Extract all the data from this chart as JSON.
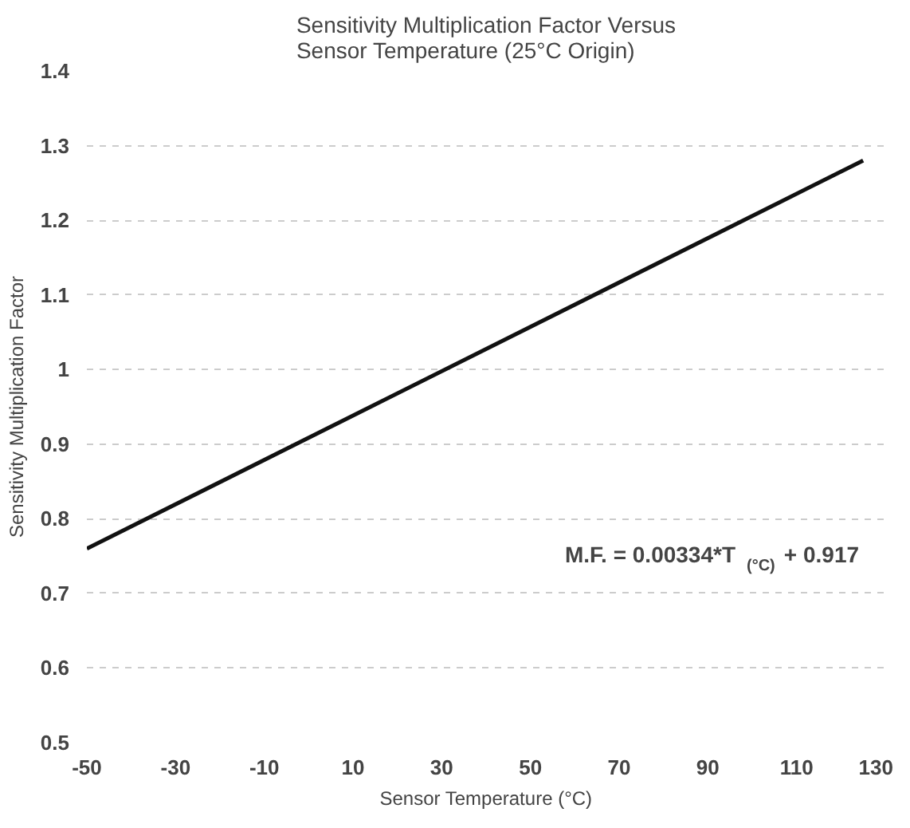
{
  "chart_data": {
    "type": "line",
    "title": "Sensitivity Multiplication Factor Versus\nSensor Temperature (25°C Origin)",
    "xlabel": "Sensor Temperature (°C)",
    "ylabel": "Sensitivity Multiplication Factor",
    "x": [
      -50,
      125
    ],
    "series": [
      {
        "color": "#111111",
        "values": [
          0.76,
          1.28
        ]
      }
    ],
    "xlim": [
      -50,
      130
    ],
    "xticks": [
      -50,
      -30,
      -10,
      10,
      30,
      50,
      70,
      90,
      110,
      130
    ],
    "ylim": [
      0.5,
      1.4
    ],
    "yticks": [
      0.5,
      0.6,
      0.7,
      0.8,
      0.9,
      1,
      1.1,
      1.2,
      1.3,
      1.4
    ],
    "grid": "y",
    "marker": "none",
    "line_style": "solid",
    "annotations": [
      "M.F. = 0.00334*T$_{(°C)}$ + 0.917"
    ]
  }
}
